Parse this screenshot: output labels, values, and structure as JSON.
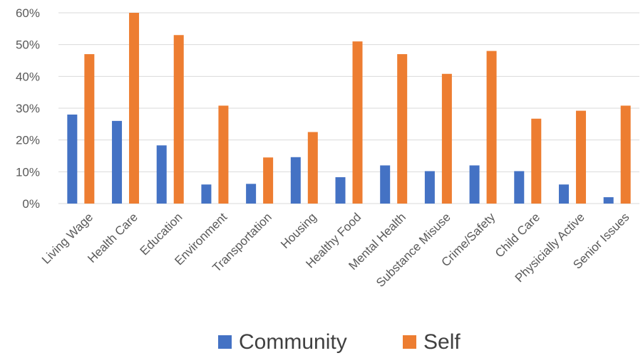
{
  "chart_data": {
    "type": "bar",
    "categories": [
      "Living Wage",
      "Health Care",
      "Education",
      "Environment",
      "Transportation",
      "Housing",
      "Healthy Food",
      "Mental Health",
      "Substance Misuse",
      "Crime/Safety",
      "Child Care",
      "Physicially Active",
      "Senior Issues"
    ],
    "series": [
      {
        "name": "Community",
        "color": "#4472c4",
        "values": [
          28,
          26,
          18.3,
          6,
          6.2,
          14.6,
          8.3,
          12,
          10.2,
          12,
          10.2,
          6,
          2
        ]
      },
      {
        "name": "Self",
        "color": "#ed7d31",
        "values": [
          47,
          60,
          53,
          30.8,
          14.5,
          22.5,
          51,
          47,
          40.8,
          48,
          26.7,
          29.2,
          30.8
        ]
      }
    ],
    "title": "",
    "xlabel": "",
    "ylabel": "",
    "ylim": [
      0,
      60
    ],
    "yticks": [
      "0%",
      "10%",
      "20%",
      "30%",
      "40%",
      "50%",
      "60%"
    ],
    "grid": true,
    "legend_position": "bottom"
  }
}
